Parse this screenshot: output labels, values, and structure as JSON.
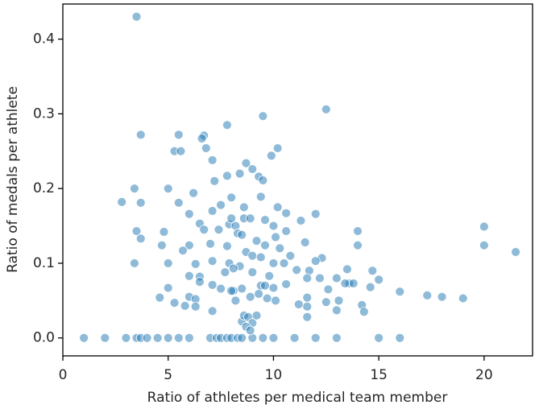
{
  "chart_data": {
    "type": "scatter",
    "xlabel": "Ratio of athletes per medical team member",
    "ylabel": "Ratio of medals per athlete",
    "xlim": [
      0,
      22.3
    ],
    "ylim": [
      -0.024,
      0.447
    ],
    "xticks": [
      0,
      5,
      10,
      15,
      20
    ],
    "yticks": [
      {
        "value": 0,
        "label": "0.0"
      },
      0.1,
      0.2,
      0.3,
      0.4
    ],
    "color": "#1f77b4",
    "series": [
      {
        "name": null,
        "color": "#1f77b4",
        "x": [
          1,
          2,
          3,
          3.5,
          3.7,
          4,
          4.5,
          5,
          5.5,
          6,
          7,
          7.3,
          7.5,
          7.8,
          8,
          8.3,
          8.5,
          9,
          9.5,
          10,
          11,
          12,
          13,
          15,
          16,
          3.5,
          12.5,
          9.5,
          7.8,
          3.7,
          5.5,
          6.7,
          6.6,
          6.8,
          10.2,
          5.3,
          5.6,
          9.9,
          7.1,
          8.7,
          9.0,
          8.4,
          7.8,
          9.3,
          9.5,
          7.2,
          3.4,
          5.0,
          6.2,
          2.8,
          3.7,
          5.5,
          9.4,
          7.5,
          10.2,
          8.0,
          8.6,
          7.1,
          6.0,
          12.0,
          10.6,
          8.6,
          8.9,
          9.6,
          11.3,
          7.9,
          8.2,
          10.0,
          8.0,
          6.5,
          3.5,
          3.7,
          4.8,
          6.7,
          7.4,
          8.3,
          10.6,
          14.0,
          20.0,
          8.5,
          9.2,
          10.1,
          11.5,
          14.0,
          20.0,
          21.5,
          4.7,
          6.0,
          7.0,
          7.8,
          9.6,
          10.3,
          5.7,
          8.7,
          9.0,
          9.4,
          10.8,
          12.3,
          12.0,
          7.1,
          3.4,
          5.0,
          6.3,
          7.9,
          8.4,
          10.0,
          10.5,
          11.1,
          11.7,
          13.5,
          14.7,
          6.0,
          6.5,
          7.7,
          8.1,
          9.0,
          9.8,
          11.6,
          13.0,
          12.2,
          15.0,
          6.5,
          7.1,
          7.5,
          8.1,
          8.5,
          9.4,
          9.6,
          10.0,
          10.6,
          13.6,
          13.4,
          13.8,
          5.0,
          4.6,
          6.0,
          6.3,
          8.0,
          8.9,
          9.3,
          9.7,
          10.1,
          11.6,
          12.5,
          13.1,
          14.6,
          16.0,
          17.3,
          18.0,
          19.0,
          5.3,
          5.8,
          6.3,
          7.1,
          8.2,
          11.2,
          11.6,
          13.0,
          14.2,
          14.3,
          11.6,
          8.5,
          8.6,
          8.8,
          9.0,
          8.7,
          8.9,
          9.2,
          12.6
        ],
        "values": [
          0,
          0,
          0,
          0,
          0,
          0,
          0,
          0,
          0,
          0,
          0,
          0,
          0,
          0,
          0,
          0,
          0,
          0,
          0,
          0,
          0,
          0,
          0,
          0,
          0,
          0.43,
          0.306,
          0.297,
          0.285,
          0.272,
          0.272,
          0.271,
          0.267,
          0.254,
          0.254,
          0.25,
          0.25,
          0.244,
          0.238,
          0.234,
          0.226,
          0.22,
          0.217,
          0.216,
          0.211,
          0.21,
          0.2,
          0.2,
          0.194,
          0.182,
          0.181,
          0.181,
          0.189,
          0.178,
          0.175,
          0.188,
          0.175,
          0.17,
          0.166,
          0.166,
          0.167,
          0.16,
          0.16,
          0.158,
          0.157,
          0.152,
          0.15,
          0.15,
          0.16,
          0.153,
          0.143,
          0.133,
          0.142,
          0.145,
          0.145,
          0.14,
          0.143,
          0.143,
          0.149,
          0.138,
          0.13,
          0.135,
          0.128,
          0.124,
          0.124,
          0.115,
          0.124,
          0.124,
          0.126,
          0.123,
          0.124,
          0.12,
          0.117,
          0.115,
          0.11,
          0.108,
          0.11,
          0.107,
          0.103,
          0.103,
          0.1,
          0.1,
          0.099,
          0.1,
          0.096,
          0.1,
          0.1,
          0.091,
          0.09,
          0.092,
          0.09,
          0.083,
          0.082,
          0.088,
          0.093,
          0.088,
          0.083,
          0.08,
          0.08,
          0.08,
          0.078,
          0.075,
          0.071,
          0.066,
          0.063,
          0.066,
          0.07,
          0.07,
          0.067,
          0.072,
          0.073,
          0.073,
          0.073,
          0.067,
          0.054,
          0.055,
          0.052,
          0.063,
          0.055,
          0.059,
          0.053,
          0.05,
          0.054,
          0.048,
          0.05,
          0.068,
          0.062,
          0.057,
          0.055,
          0.053,
          0.047,
          0.043,
          0.042,
          0.036,
          0.05,
          0.045,
          0.042,
          0.037,
          0.044,
          0.035,
          0.028,
          0.022,
          0.03,
          0.028,
          0.02,
          0.015,
          0.01,
          0.03,
          0.065
        ]
      }
    ]
  }
}
